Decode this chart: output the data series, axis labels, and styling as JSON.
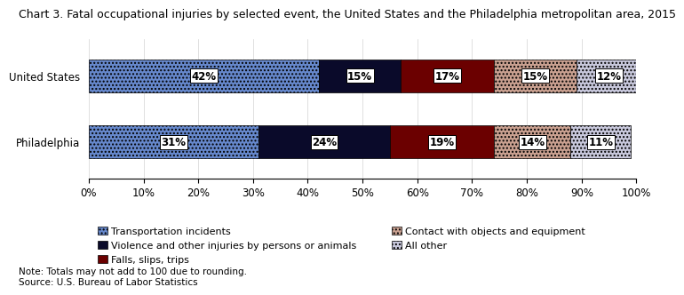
{
  "title": "Chart 3. Fatal occupational injuries by selected event, the United States and the Philadelphia metropolitan area, 2015",
  "categories": [
    "United States",
    "Philadelphia"
  ],
  "series": [
    {
      "label": "Transportation incidents",
      "values": [
        42,
        31
      ],
      "color": "#6688CC",
      "hatch": "...."
    },
    {
      "label": "Violence and other injuries by persons or animals",
      "values": [
        15,
        24
      ],
      "color": "#0A0A2A",
      "hatch": ""
    },
    {
      "label": "Falls, slips, trips",
      "values": [
        17,
        19
      ],
      "color": "#6B0000",
      "hatch": ""
    },
    {
      "label": "Contact with objects and equipment",
      "values": [
        15,
        14
      ],
      "color": "#C9A090",
      "hatch": "...."
    },
    {
      "label": "All other",
      "values": [
        12,
        11
      ],
      "color": "#C8C8DC",
      "hatch": "...."
    }
  ],
  "xlim": [
    0,
    100
  ],
  "xticks": [
    0,
    10,
    20,
    30,
    40,
    50,
    60,
    70,
    80,
    90,
    100
  ],
  "note": "Note: Totals may not add to 100 due to rounding.\nSource: U.S. Bureau of Labor Statistics",
  "bar_height": 0.5,
  "title_fontsize": 9,
  "label_fontsize": 8.5,
  "tick_fontsize": 8.5,
  "legend_fontsize": 8,
  "note_fontsize": 7.5
}
